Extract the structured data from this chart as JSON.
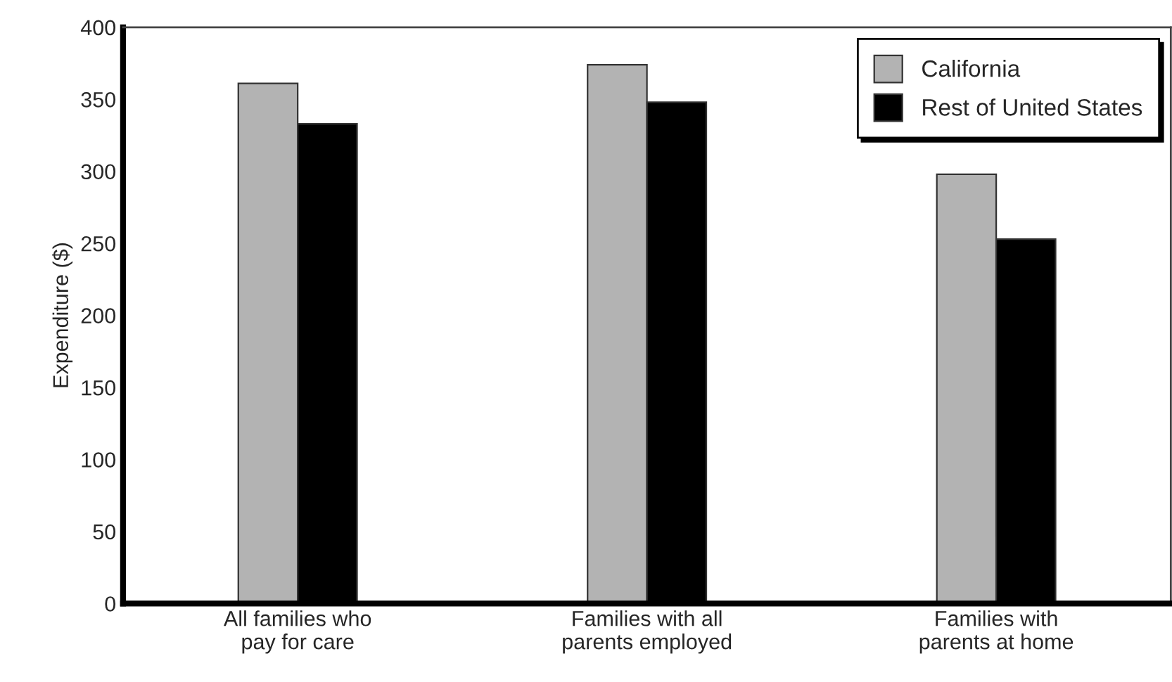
{
  "chart_data": {
    "type": "bar",
    "ylabel": "Expenditure ($)",
    "categories": [
      "All families who\npay for care",
      "Families with all\nparents employed",
      "Families with\nparents at home"
    ],
    "series": [
      {
        "name": "California",
        "color": "#b3b3b3",
        "values": [
          361,
          374,
          298
        ]
      },
      {
        "name": "Rest of United States",
        "color": "#000000",
        "values": [
          333,
          348,
          253
        ]
      }
    ],
    "ylim": [
      0,
      400
    ],
    "yticks": [
      0,
      50,
      100,
      150,
      200,
      250,
      300,
      350,
      400
    ],
    "grid": false,
    "legend": "top right"
  }
}
